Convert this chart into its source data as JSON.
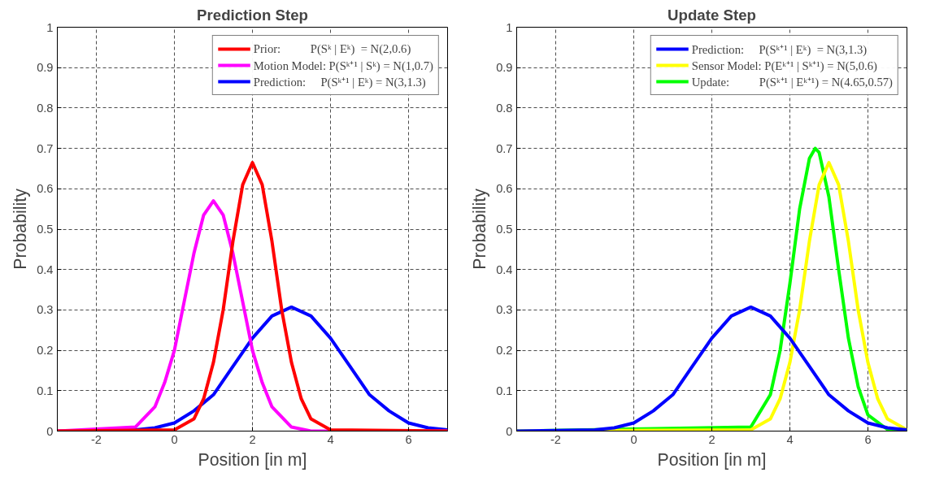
{
  "chart_data": [
    {
      "type": "line",
      "title": "Prediction Step",
      "xlabel": "Position [in m]",
      "ylabel": "Probability",
      "xlim": [
        -3,
        7
      ],
      "xticks": [
        -2,
        0,
        2,
        4,
        6
      ],
      "ylim": [
        0,
        1
      ],
      "yticks": [
        0,
        0.1,
        0.2,
        0.3,
        0.4,
        0.5,
        0.6,
        0.7,
        0.8,
        0.9,
        1
      ],
      "grid": true,
      "legend": "top right",
      "line_style": "solid",
      "series": [
        {
          "name": "Prior:          P(Sᵏ | Eᵏ)  = N(2,0.6)",
          "color": "#ff0000",
          "x": [
            -3,
            0,
            0.5,
            0.75,
            1,
            1.25,
            1.5,
            1.75,
            2,
            2.25,
            2.5,
            2.75,
            3,
            3.25,
            3.5,
            4,
            7
          ],
          "values": [
            0,
            0.003,
            0.03,
            0.08,
            0.17,
            0.3,
            0.47,
            0.61,
            0.665,
            0.61,
            0.47,
            0.3,
            0.17,
            0.08,
            0.03,
            0.003,
            0
          ]
        },
        {
          "name": "Motion Model: P(Sᵏ⁺¹ | Sᵏ) = N(1,0.7)",
          "color": "#ff00ff",
          "x": [
            -3,
            -1,
            -0.5,
            -0.25,
            0,
            0.25,
            0.5,
            0.75,
            1,
            1.25,
            1.5,
            1.75,
            2,
            2.25,
            2.5,
            3,
            3.5,
            7
          ],
          "values": [
            0,
            0.01,
            0.06,
            0.12,
            0.2,
            0.32,
            0.44,
            0.535,
            0.57,
            0.535,
            0.44,
            0.32,
            0.2,
            0.12,
            0.06,
            0.01,
            0,
            0
          ]
        },
        {
          "name": "Prediction:     P(Sᵏ⁺¹ | Eᵏ) = N(3,1.3)",
          "color": "#0000ff",
          "x": [
            -3,
            -1,
            -0.5,
            0,
            0.5,
            1,
            1.5,
            2,
            2.5,
            3,
            3.5,
            4,
            4.5,
            5,
            5.5,
            6,
            6.5,
            7
          ],
          "values": [
            0,
            0.003,
            0.008,
            0.02,
            0.05,
            0.09,
            0.16,
            0.23,
            0.285,
            0.307,
            0.285,
            0.23,
            0.16,
            0.09,
            0.05,
            0.02,
            0.008,
            0.003
          ]
        }
      ]
    },
    {
      "type": "line",
      "title": "Update Step",
      "xlabel": "Position [in m]",
      "ylabel": "Probability",
      "xlim": [
        -3,
        7
      ],
      "xticks": [
        -2,
        0,
        2,
        4,
        6
      ],
      "ylim": [
        0,
        1
      ],
      "yticks": [
        0,
        0.1,
        0.2,
        0.3,
        0.4,
        0.5,
        0.6,
        0.7,
        0.8,
        0.9,
        1
      ],
      "grid": true,
      "legend": "top right",
      "line_style": "solid",
      "series": [
        {
          "name": "Prediction:     P(Sᵏ⁺¹ | Eᵏ)  = N(3,1.3)",
          "color": "#0000ff",
          "x": [
            -3,
            -1,
            -0.5,
            0,
            0.5,
            1,
            1.5,
            2,
            2.5,
            3,
            3.5,
            4,
            4.5,
            5,
            5.5,
            6,
            6.5,
            7
          ],
          "values": [
            0,
            0.003,
            0.008,
            0.02,
            0.05,
            0.09,
            0.16,
            0.23,
            0.285,
            0.307,
            0.285,
            0.23,
            0.16,
            0.09,
            0.05,
            0.02,
            0.008,
            0.003
          ]
        },
        {
          "name": "Sensor Model: P(Eᵏ⁺¹ | Sᵏ⁺¹) = N(5,0.6)",
          "color": "#ffff00",
          "x": [
            -3,
            3,
            3.5,
            3.75,
            4,
            4.25,
            4.5,
            4.75,
            5,
            5.25,
            5.5,
            5.75,
            6,
            6.25,
            6.5,
            7
          ],
          "values": [
            0,
            0.003,
            0.03,
            0.08,
            0.17,
            0.3,
            0.47,
            0.61,
            0.665,
            0.61,
            0.47,
            0.3,
            0.17,
            0.08,
            0.03,
            0.003
          ]
        },
        {
          "name": "Update:          P(Sᵏ⁺¹ | Eᵏ⁺¹) = N(4.65,0.57)",
          "color": "#00ff00",
          "x": [
            -3,
            3,
            3.5,
            3.75,
            4,
            4.25,
            4.5,
            4.65,
            4.75,
            5,
            5.25,
            5.5,
            5.75,
            6,
            6.5,
            7
          ],
          "values": [
            0,
            0.01,
            0.09,
            0.2,
            0.365,
            0.55,
            0.675,
            0.7,
            0.69,
            0.58,
            0.4,
            0.23,
            0.11,
            0.04,
            0.004,
            0
          ]
        }
      ]
    }
  ]
}
